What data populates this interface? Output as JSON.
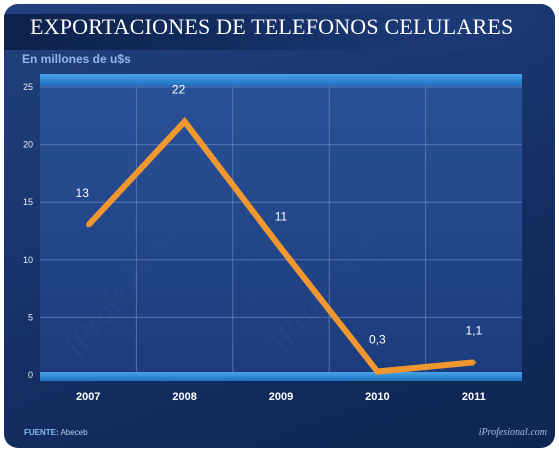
{
  "header": {
    "title": "EXPORTACIONES DE TELEFONOS CELULARES",
    "subtitle": "En millones de u$s"
  },
  "footer": {
    "source_label": "FUENTE:",
    "source_value": "Abeceb",
    "brand": "iProfesional.com"
  },
  "watermark": "iProfesional.com",
  "colors": {
    "background": "#1a3670",
    "line": "#f0982f",
    "text": "#ffffff"
  },
  "chart_data": {
    "type": "line",
    "categories": [
      "2007",
      "2008",
      "2009",
      "2010",
      "2011"
    ],
    "series": [
      {
        "values": [
          13,
          22,
          11,
          0.3,
          1.1
        ],
        "labels": [
          "13",
          "22",
          "11",
          "0,3",
          "1,1"
        ]
      }
    ],
    "title": "EXPORTACIONES DE TELEFONOS CELULARES",
    "subtitle": "En millones de u$s",
    "ylim": [
      0,
      25
    ],
    "yticks": [
      0,
      5,
      10,
      15,
      20,
      25
    ],
    "grid": true,
    "legend": "none"
  }
}
